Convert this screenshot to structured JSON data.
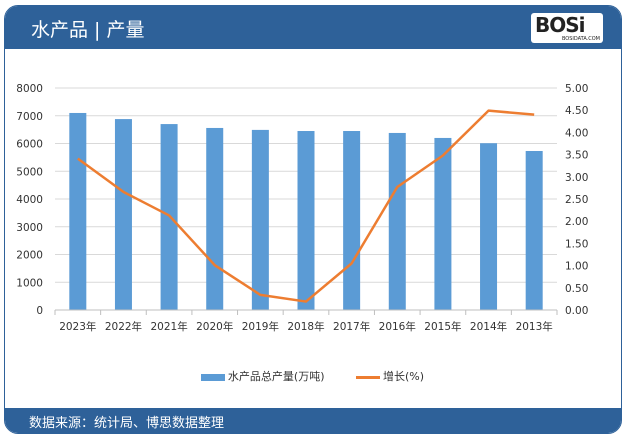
{
  "header": {
    "title": "水产品 | 产量",
    "logo_text": "BOSi",
    "logo_sub": "BOSIDATA.COM"
  },
  "footer": {
    "source": "数据来源：统计局、博思数据整理"
  },
  "chart_data": {
    "type": "bar+line",
    "title": "水产品 | 产量",
    "categories": [
      "2023年",
      "2022年",
      "2021年",
      "2020年",
      "2019年",
      "2018年",
      "2017年",
      "2016年",
      "2015年",
      "2014年",
      "2013年"
    ],
    "series": [
      {
        "name": "水产品总产量(万吨)",
        "type": "bar",
        "axis": "left",
        "color": "#5b9bd5",
        "values": [
          7100,
          6880,
          6700,
          6560,
          6490,
          6450,
          6450,
          6380,
          6200,
          6010,
          5730
        ]
      },
      {
        "name": "增长(%)",
        "type": "line",
        "axis": "right",
        "color": "#ed7d31",
        "values": [
          3.41,
          2.66,
          2.13,
          1.01,
          0.34,
          0.19,
          1.05,
          2.77,
          3.48,
          4.49,
          4.4
        ]
      }
    ],
    "y_left": {
      "range": [
        0,
        8000
      ],
      "ticks": [
        "0",
        "1000",
        "2000",
        "3000",
        "4000",
        "5000",
        "6000",
        "7000",
        "8000"
      ]
    },
    "y_right": {
      "range": [
        0,
        5
      ],
      "ticks": [
        "0.00",
        "0.50",
        "1.00",
        "1.50",
        "2.00",
        "2.50",
        "3.00",
        "3.50",
        "4.00",
        "4.50",
        "5.00"
      ]
    },
    "grid": true,
    "legend": "bottom"
  }
}
